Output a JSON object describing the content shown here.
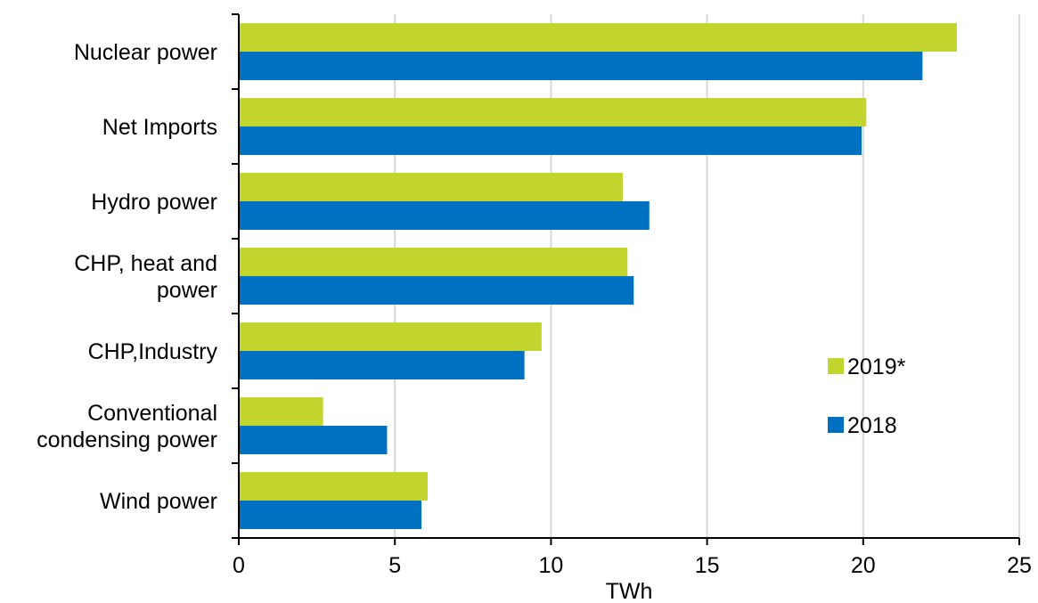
{
  "chart_data": {
    "type": "bar",
    "orientation": "horizontal",
    "categories": [
      [
        "Nuclear power"
      ],
      [
        "Net Imports"
      ],
      [
        "Hydro power"
      ],
      [
        "CHP, heat and",
        "power"
      ],
      [
        "CHP,Industry"
      ],
      [
        "Conventional",
        "condensing power"
      ],
      [
        "Wind power"
      ]
    ],
    "series": [
      {
        "name": "2019*",
        "color": "#c2d52f",
        "values": [
          23.0,
          20.1,
          12.3,
          12.45,
          9.7,
          2.7,
          6.05
        ]
      },
      {
        "name": "2018",
        "color": "#0070c0",
        "values": [
          21.9,
          19.95,
          13.15,
          12.65,
          9.15,
          4.75,
          5.85
        ]
      }
    ],
    "xlabel": "TWh",
    "xlim": [
      0,
      25
    ],
    "xticks": [
      0,
      5,
      10,
      15,
      20,
      25
    ],
    "grid": "vertical",
    "legend_position": "right"
  }
}
